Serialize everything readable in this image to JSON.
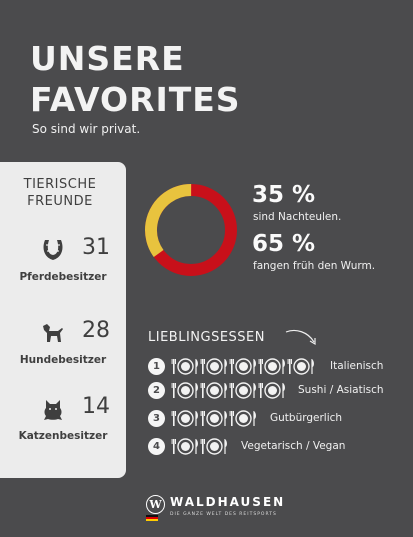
{
  "header": {
    "title_line1": "UNSERE",
    "title_line2": "FAVORITES",
    "subtitle": "So sind wir privat."
  },
  "pets": {
    "heading_line1": "TIERISCHE",
    "heading_line2": "FREUNDE",
    "items": [
      {
        "icon": "horseshoe-icon",
        "count": "31",
        "label": "Pferdebesitzer"
      },
      {
        "icon": "dog-icon",
        "count": "28",
        "label": "Hundebesitzer"
      },
      {
        "icon": "cat-icon",
        "count": "14",
        "label": "Katzenbesitzer"
      }
    ]
  },
  "donut": {
    "yellow_color": "#e8c33e",
    "red_color": "#c8101a",
    "yellow_percent": 35,
    "red_percent": 65
  },
  "stats": [
    {
      "value": "35 %",
      "label": "sind Nachteulen."
    },
    {
      "value": "65 %",
      "label": "fangen früh den Wurm."
    }
  ],
  "food": {
    "heading": "LIEBLINGSESSEN",
    "items": [
      {
        "rank": "1",
        "plates": 5,
        "label": "Italienisch"
      },
      {
        "rank": "2",
        "plates": 4,
        "label": "Sushi / Asiatisch"
      },
      {
        "rank": "3",
        "plates": 3,
        "label": "Gutbürgerlich"
      },
      {
        "rank": "4",
        "plates": 2,
        "label": "Vegetarisch / Vegan"
      }
    ]
  },
  "logo": {
    "letter": "W",
    "brand": "WALDHAUSEN",
    "tagline": "DIE GANZE WELT DES REITSPORTS"
  }
}
